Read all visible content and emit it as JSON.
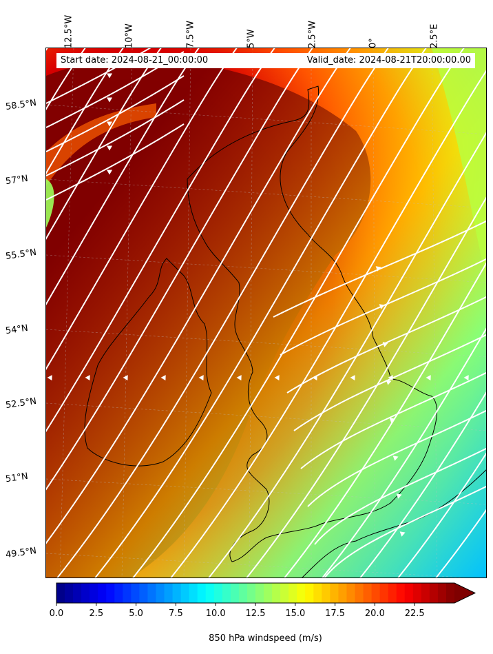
{
  "map": {
    "start_date": "Start date: 2024-08-21_00:00:00",
    "valid_date": "Valid_date: 2024-08-21T20:00:00.00",
    "lon_labels": [
      "12.5°W",
      "10°W",
      "7.5°W",
      "5°W",
      "2.5°W",
      "0°",
      "2.5°E"
    ],
    "lat_labels": [
      "58.5°N",
      "57°N",
      "55.5°N",
      "54°N",
      "52.5°N",
      "51°N",
      "49.5°N"
    ],
    "field": "850 hPa windspeed",
    "overlay": "white streamlines",
    "coastline_color": "#000000",
    "streamline_color": "#ffffff"
  },
  "colorbar": {
    "title": "850 hPa windspeed (m/s)",
    "ticks": [
      "0.0",
      "2.5",
      "5.0",
      "7.5",
      "10.0",
      "12.5",
      "15.0",
      "17.5",
      "20.0",
      "22.5"
    ],
    "range": [
      0,
      25
    ],
    "extend": "max",
    "colormap": [
      "#00007f",
      "#0000ff",
      "#007fff",
      "#00ffff",
      "#7fff7f",
      "#ffff00",
      "#ff7f00",
      "#ff0000",
      "#7f0000"
    ]
  }
}
